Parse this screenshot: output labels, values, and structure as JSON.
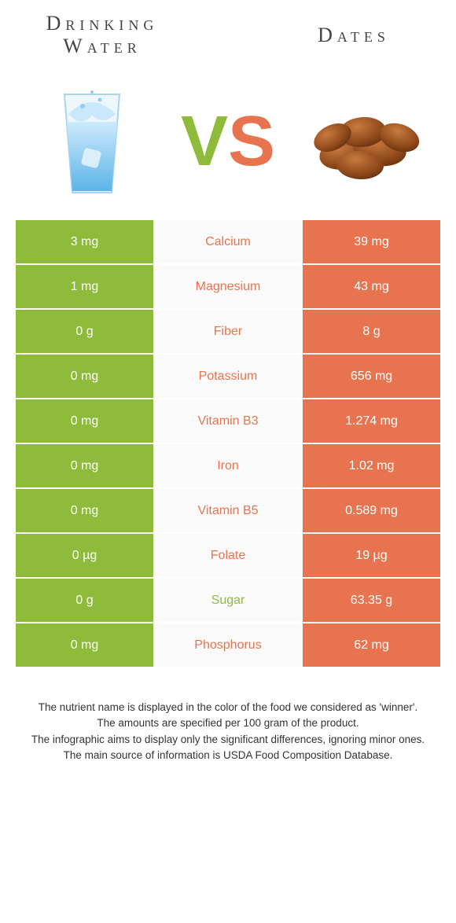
{
  "header": {
    "left_title": "Drinking Water",
    "right_title": "Dates",
    "vs_v": "V",
    "vs_s": "S"
  },
  "colors": {
    "left": "#8fbb3b",
    "right": "#e8744f",
    "mid_bg": "#fafafa",
    "text": "#333333"
  },
  "rows": [
    {
      "left": "3 mg",
      "label": "Calcium",
      "winner": "right",
      "right": "39 mg"
    },
    {
      "left": "1 mg",
      "label": "Magnesium",
      "winner": "right",
      "right": "43 mg"
    },
    {
      "left": "0 g",
      "label": "Fiber",
      "winner": "right",
      "right": "8 g"
    },
    {
      "left": "0 mg",
      "label": "Potassium",
      "winner": "right",
      "right": "656 mg"
    },
    {
      "left": "0 mg",
      "label": "Vitamin B3",
      "winner": "right",
      "right": "1.274 mg"
    },
    {
      "left": "0 mg",
      "label": "Iron",
      "winner": "right",
      "right": "1.02 mg"
    },
    {
      "left": "0 mg",
      "label": "Vitamin B5",
      "winner": "right",
      "right": "0.589 mg"
    },
    {
      "left": "0 µg",
      "label": "Folate",
      "winner": "right",
      "right": "19 µg"
    },
    {
      "left": "0 g",
      "label": "Sugar",
      "winner": "left",
      "right": "63.35 g"
    },
    {
      "left": "0 mg",
      "label": "Phosphorus",
      "winner": "right",
      "right": "62 mg"
    }
  ],
  "footer": {
    "line1": "The nutrient name is displayed in the color of the food we considered as 'winner'.",
    "line2": "The amounts are specified per 100 gram of the product.",
    "line3": "The infographic aims to display only the significant differences, ignoring minor ones.",
    "line4": "The main source of information is USDA Food Composition Database."
  }
}
